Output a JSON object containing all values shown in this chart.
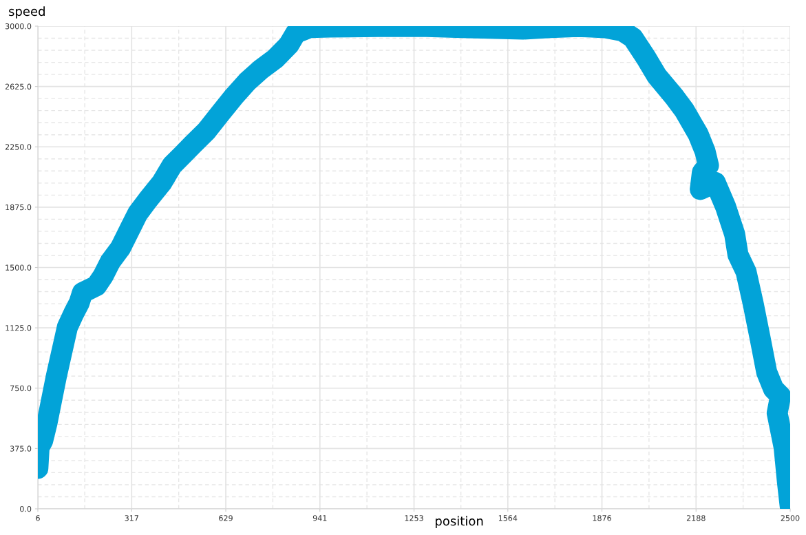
{
  "chart_data": {
    "type": "line",
    "xlabel": "position",
    "ylabel": "speed",
    "x": [
      6,
      10,
      22,
      36,
      52,
      68,
      86,
      104,
      125,
      143,
      154,
      200,
      223,
      246,
      280,
      314,
      337,
      371,
      417,
      451,
      485,
      519,
      565,
      610,
      656,
      701,
      747,
      793,
      838,
      861,
      907,
      975,
      1135,
      1295,
      1432,
      1614,
      1705,
      1796,
      1842,
      1887,
      1944,
      1979,
      2024,
      2058,
      2115,
      2149,
      2195,
      2218,
      2229,
      2209,
      2202,
      2252,
      2286,
      2316,
      2327,
      2354,
      2377,
      2400,
      2422,
      2445,
      2468,
      2457,
      2480,
      2491,
      2500
    ],
    "series": [
      {
        "color": "#02a3d8",
        "values": [
          252,
          381,
          424,
          531,
          680,
          830,
          980,
          1130,
          1215,
          1280,
          1344,
          1386,
          1450,
          1536,
          1622,
          1750,
          1836,
          1921,
          2028,
          2135,
          2199,
          2264,
          2349,
          2456,
          2563,
          2657,
          2734,
          2798,
          2884,
          2957,
          2991,
          2995,
          2998,
          2998,
          2991,
          2982,
          2991,
          2998,
          2995,
          2990,
          2970,
          2927,
          2798,
          2691,
          2563,
          2477,
          2328,
          2221,
          2135,
          2092,
          1985,
          2028,
          1878,
          1707,
          1579,
          1472,
          1279,
          1065,
          851,
          745,
          702,
          595,
          381,
          167,
          17
        ]
      }
    ],
    "xlim": [
      6,
      2500
    ],
    "xticks": [
      6,
      317,
      629,
      941,
      1253,
      1564,
      1876,
      2188,
      2500
    ],
    "ylim": [
      0,
      3000
    ],
    "yticks": [
      {
        "value": 0,
        "label": "0.0"
      },
      {
        "value": 375,
        "label": "375.0"
      },
      {
        "value": 750,
        "label": "750.0"
      },
      {
        "value": 1125,
        "label": "1125.0"
      },
      {
        "value": 1500,
        "label": "1500.0"
      },
      {
        "value": 1875,
        "label": "1875.0"
      },
      {
        "value": 2250,
        "label": "2250.0"
      },
      {
        "value": 2625,
        "label": "2625.0"
      },
      {
        "value": 3000,
        "label": "3000.0"
      }
    ],
    "grid": true,
    "line_style": "solid"
  }
}
